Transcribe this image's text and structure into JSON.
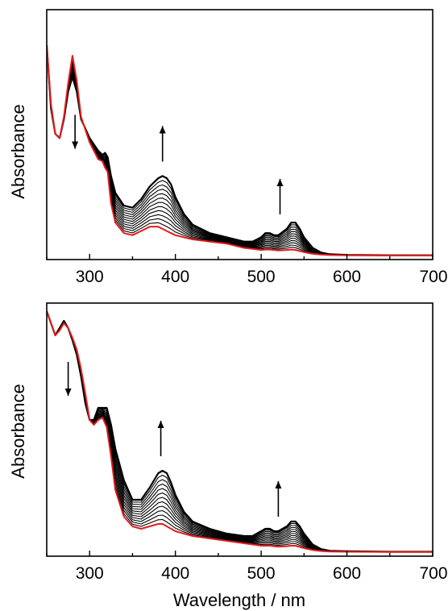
{
  "chart_data": [
    {
      "type": "line",
      "panel": "top",
      "xlim": [
        250,
        700
      ],
      "x_ticks": [
        "300",
        "400",
        "500",
        "600",
        "700"
      ],
      "xlabel": "",
      "ylabel": "Absorbance",
      "y_ticks_shown": false,
      "grid": false,
      "x": [
        250,
        255,
        260,
        265,
        270,
        275,
        280,
        285,
        290,
        300,
        305,
        310,
        315,
        318,
        321,
        325,
        330,
        340,
        350,
        360,
        370,
        380,
        385,
        390,
        395,
        400,
        410,
        420,
        440,
        460,
        480,
        490,
        500,
        505,
        510,
        515,
        520,
        530,
        535,
        540,
        545,
        550,
        560,
        570,
        580,
        600,
        650,
        700
      ],
      "series": [
        {
          "role": "initial",
          "color": "#e41a1c",
          "values": [
            1.0,
            0.72,
            0.58,
            0.56,
            0.66,
            0.82,
            0.95,
            0.83,
            0.66,
            0.54,
            0.5,
            0.46,
            0.45,
            0.42,
            0.4,
            0.25,
            0.16,
            0.11,
            0.1,
            0.12,
            0.14,
            0.14,
            0.13,
            0.12,
            0.11,
            0.1,
            0.09,
            0.08,
            0.07,
            0.06,
            0.04,
            0.035,
            0.03,
            0.032,
            0.032,
            0.03,
            0.028,
            0.03,
            0.032,
            0.03,
            0.025,
            0.02,
            0.012,
            0.008,
            0.006,
            0.005,
            0.004,
            0.004
          ]
        },
        {
          "role": "final",
          "color": "#000000",
          "values": [
            1.0,
            0.7,
            0.58,
            0.56,
            0.65,
            0.78,
            0.85,
            0.78,
            0.65,
            0.56,
            0.53,
            0.5,
            0.48,
            0.49,
            0.47,
            0.38,
            0.3,
            0.24,
            0.23,
            0.27,
            0.33,
            0.37,
            0.38,
            0.37,
            0.34,
            0.28,
            0.2,
            0.15,
            0.11,
            0.09,
            0.07,
            0.07,
            0.09,
            0.11,
            0.11,
            0.1,
            0.1,
            0.13,
            0.16,
            0.16,
            0.13,
            0.09,
            0.04,
            0.018,
            0.01,
            0.007,
            0.005,
            0.005
          ]
        }
      ],
      "intermediate_curves": 11,
      "arrows": [
        {
          "x": 283,
          "direction": "down"
        },
        {
          "x": 385,
          "direction": "up"
        },
        {
          "x": 522,
          "direction": "up"
        }
      ]
    },
    {
      "type": "line",
      "panel": "bottom",
      "xlim": [
        250,
        700
      ],
      "x_ticks": [
        "300",
        "400",
        "500",
        "600",
        "700"
      ],
      "xlabel": "Wavelength / nm",
      "ylabel": "Absorbance",
      "y_ticks_shown": false,
      "grid": false,
      "x": [
        250,
        255,
        260,
        265,
        270,
        275,
        280,
        285,
        290,
        295,
        300,
        305,
        310,
        315,
        320,
        325,
        330,
        340,
        350,
        360,
        370,
        380,
        385,
        390,
        395,
        400,
        410,
        420,
        440,
        460,
        480,
        490,
        500,
        505,
        510,
        515,
        520,
        530,
        535,
        540,
        545,
        550,
        560,
        570,
        580,
        600,
        650,
        700
      ],
      "series": [
        {
          "role": "initial",
          "color": "#e41a1c",
          "values": [
            1.0,
            0.95,
            0.9,
            0.92,
            0.95,
            0.93,
            0.89,
            0.84,
            0.76,
            0.66,
            0.55,
            0.53,
            0.55,
            0.56,
            0.52,
            0.4,
            0.26,
            0.15,
            0.11,
            0.1,
            0.11,
            0.12,
            0.12,
            0.11,
            0.1,
            0.09,
            0.08,
            0.07,
            0.06,
            0.05,
            0.04,
            0.035,
            0.03,
            0.03,
            0.03,
            0.028,
            0.026,
            0.028,
            0.03,
            0.03,
            0.025,
            0.02,
            0.012,
            0.008,
            0.006,
            0.005,
            0.004,
            0.004
          ]
        },
        {
          "role": "final",
          "color": "#000000",
          "values": [
            1.0,
            0.95,
            0.9,
            0.93,
            0.96,
            0.93,
            0.88,
            0.82,
            0.73,
            0.62,
            0.55,
            0.55,
            0.6,
            0.6,
            0.6,
            0.53,
            0.43,
            0.3,
            0.22,
            0.22,
            0.27,
            0.33,
            0.34,
            0.33,
            0.29,
            0.24,
            0.17,
            0.13,
            0.1,
            0.08,
            0.07,
            0.07,
            0.09,
            0.1,
            0.1,
            0.09,
            0.09,
            0.11,
            0.13,
            0.13,
            0.11,
            0.08,
            0.035,
            0.016,
            0.009,
            0.007,
            0.005,
            0.005
          ]
        }
      ],
      "intermediate_curves": 11,
      "arrows": [
        {
          "x": 275,
          "direction": "down"
        },
        {
          "x": 383,
          "direction": "up"
        },
        {
          "x": 520,
          "direction": "up"
        }
      ]
    }
  ]
}
